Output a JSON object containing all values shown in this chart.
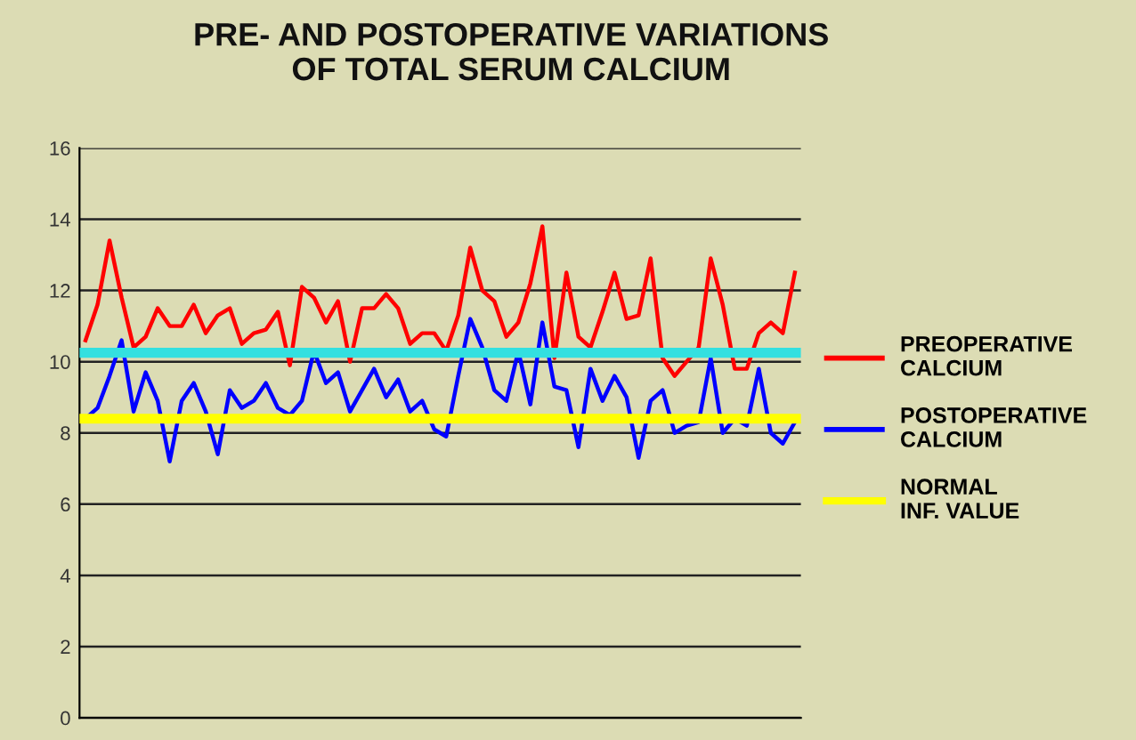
{
  "chart_data": {
    "type": "line",
    "title": "PRE- AND POSTOPERATIVE VARIATIONS\nOF TOTAL SERUM CALCIUM",
    "categories": [
      null,
      null,
      null,
      null,
      null,
      null,
      null,
      null,
      null,
      null,
      null,
      null,
      null,
      null,
      null,
      null,
      null,
      null,
      null,
      null,
      null,
      null,
      null,
      null,
      null,
      null,
      null,
      null,
      null,
      null,
      null,
      null,
      null,
      null,
      null,
      null,
      null,
      null,
      null,
      null,
      null,
      null,
      null,
      null,
      null,
      null,
      null,
      null,
      null,
      null,
      null,
      null,
      null,
      null,
      null,
      null,
      null,
      null,
      null,
      null
    ],
    "series": [
      {
        "name": "PREOPERATIVE CALCIUM",
        "color": "#ff0000",
        "values": [
          10.6,
          11.6,
          13.4,
          11.8,
          10.4,
          10.7,
          11.5,
          11.0,
          11.0,
          11.6,
          10.8,
          11.3,
          11.5,
          10.5,
          10.8,
          10.9,
          11.4,
          9.9,
          12.1,
          11.8,
          11.1,
          11.7,
          10.0,
          11.5,
          11.5,
          11.9,
          11.5,
          10.5,
          10.8,
          10.8,
          10.3,
          11.3,
          13.2,
          12.0,
          11.7,
          10.7,
          11.1,
          12.2,
          13.8,
          10.1,
          12.5,
          10.7,
          10.4,
          11.4,
          12.5,
          11.2,
          11.3,
          12.9,
          10.1,
          9.6,
          10.0,
          10.4,
          12.9,
          11.6,
          9.8,
          9.8,
          10.8,
          11.1,
          10.8,
          12.5
        ]
      },
      {
        "name": "POSTOPERATIVE CALCIUM",
        "color": "#0000ff",
        "values": [
          8.4,
          8.7,
          9.6,
          10.6,
          8.6,
          9.7,
          8.9,
          7.2,
          8.9,
          9.4,
          8.6,
          7.4,
          9.2,
          8.7,
          8.9,
          9.4,
          8.7,
          8.5,
          8.9,
          10.3,
          9.4,
          9.7,
          8.6,
          9.2,
          9.8,
          9.0,
          9.5,
          8.6,
          8.9,
          8.1,
          7.9,
          9.6,
          11.2,
          10.4,
          9.2,
          8.9,
          10.3,
          8.8,
          11.1,
          9.3,
          9.2,
          7.6,
          9.8,
          8.9,
          9.6,
          9.0,
          7.3,
          8.9,
          9.2,
          8.0,
          8.2,
          8.3,
          10.1,
          8.0,
          8.4,
          8.2,
          9.8,
          8.0,
          7.7,
          8.3
        ]
      }
    ],
    "ref_lines": [
      {
        "axis": "y",
        "value": 10.25,
        "color": "#33e0e0"
      },
      {
        "axis": "y",
        "value": 8.4,
        "label": "NORMAL INF. VALUE",
        "color": "#ffff00"
      }
    ],
    "ylim": [
      0,
      16
    ],
    "yticks": [
      0,
      2,
      4,
      6,
      8,
      10,
      12,
      14,
      16
    ],
    "grid": "y",
    "legend": "right",
    "tick_labels": "y"
  }
}
